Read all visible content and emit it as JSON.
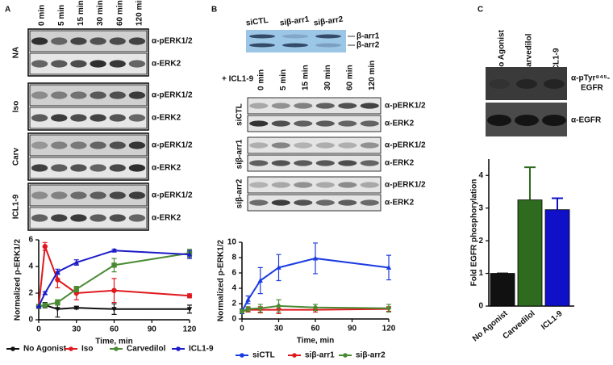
{
  "panels": [
    "A",
    "B",
    "C"
  ],
  "blot_a": {
    "columns": [
      "0 min",
      "5 min",
      "15 min",
      "30 min",
      "60 min",
      "120 min"
    ],
    "groups": [
      "NA",
      "Iso",
      "Carv",
      "ICL1-9"
    ],
    "antibodies": [
      "α-pERK1/2",
      "α-ERK2"
    ]
  },
  "blot_b": {
    "lanes": [
      "siCTL",
      "siβ-arr1",
      "siβ-arr2"
    ],
    "bands": [
      "β-arr1",
      "β-arr2"
    ],
    "treatment": "+ ICL1-9",
    "columns": [
      "0 min",
      "5 min",
      "15 min",
      "30 min",
      "60 min",
      "120 min"
    ],
    "groups": [
      "siCTL",
      "siβ-arr1",
      "siβ-arr2"
    ],
    "antibodies": [
      "α-pERK1/2",
      "α-ERK2"
    ]
  },
  "blot_c": {
    "lanes": [
      "No Agonist",
      "Carvedilol",
      "ICL1-9"
    ],
    "ptyr_label": [
      "α-pTyr⁸⁴⁵-",
      "EGFR"
    ],
    "egfr_label": "α-EGFR"
  },
  "chart_data": [
    {
      "type": "line",
      "y_label": "Normalized p-ERK1/2",
      "x_label": "Time, min",
      "x": [
        0,
        5,
        15,
        30,
        60,
        120
      ],
      "xlim": [
        0,
        120
      ],
      "xticks": [
        0,
        30,
        60,
        90,
        120
      ],
      "ylim": [
        0,
        6
      ],
      "yticks": [
        0,
        2,
        4,
        6
      ],
      "series": [
        {
          "name": "No Agonist",
          "color": "#111111",
          "marker": "triangle-down",
          "values": [
            1,
            1.1,
            0.8,
            0.9,
            0.8,
            0.8
          ],
          "errors": [
            0,
            0.2,
            0.6,
            0.1,
            0.4,
            0.3
          ]
        },
        {
          "name": "Iso",
          "color": "#e0191e",
          "marker": "circle",
          "values": [
            1,
            5.5,
            3.0,
            2.0,
            2.2,
            1.8
          ],
          "errors": [
            0,
            0.3,
            0.6,
            0.5,
            0.9,
            0.15
          ]
        },
        {
          "name": "Carvedilol",
          "color": "#4a8a33",
          "marker": "square",
          "values": [
            1,
            1.1,
            1.3,
            2.3,
            4.1,
            5.0
          ],
          "errors": [
            0,
            0.1,
            0.2,
            0.2,
            0.5,
            0.3
          ]
        },
        {
          "name": "ICL1-9",
          "color": "#1c1cc8",
          "marker": "triangle",
          "values": [
            1,
            2.0,
            3.6,
            4.3,
            5.2,
            4.9
          ],
          "errors": [
            0,
            0.1,
            0.2,
            0.2,
            0.1,
            0.3
          ]
        }
      ]
    },
    {
      "type": "line",
      "y_label": "Normalized p-ERK1/2",
      "x_label": "Time, min",
      "x": [
        0,
        5,
        15,
        30,
        60,
        120
      ],
      "xlim": [
        0,
        120
      ],
      "xticks": [
        0,
        30,
        60,
        90,
        120
      ],
      "ylim": [
        0,
        10
      ],
      "yticks": [
        0,
        2,
        4,
        6,
        8,
        10
      ],
      "series": [
        {
          "name": "siCTL",
          "color": "#1c3ce0",
          "marker": "triangle",
          "values": [
            1,
            2.5,
            5.0,
            6.7,
            7.9,
            6.7
          ],
          "errors": [
            0.3,
            0.5,
            1.7,
            1.7,
            2.0,
            1.6
          ]
        },
        {
          "name": "siβ-arr1",
          "color": "#e0191e",
          "marker": "triangle-down",
          "values": [
            1,
            1.2,
            1.2,
            1.2,
            1.2,
            1.3
          ],
          "errors": [
            0.2,
            0.3,
            0.4,
            0.5,
            0.3,
            0.3
          ]
        },
        {
          "name": "siβ-arr2",
          "color": "#4a8a33",
          "marker": "diamond",
          "values": [
            1,
            1.3,
            1.4,
            1.7,
            1.5,
            1.4
          ],
          "errors": [
            0.2,
            0.3,
            0.5,
            0.8,
            0.4,
            0.5
          ]
        }
      ]
    },
    {
      "type": "bar",
      "y_label": "Fold EGFR phosphorylation",
      "categories": [
        "No Agonist",
        "Carvedilol",
        "ICL1-9"
      ],
      "values": [
        1,
        3.25,
        2.95
      ],
      "errors": [
        0,
        1.0,
        0.35
      ],
      "colors": [
        "#111111",
        "#2e6b1e",
        "#1010c8"
      ],
      "ylim": [
        0,
        4.5
      ],
      "yticks": [
        0,
        1,
        2,
        3,
        4
      ]
    }
  ]
}
